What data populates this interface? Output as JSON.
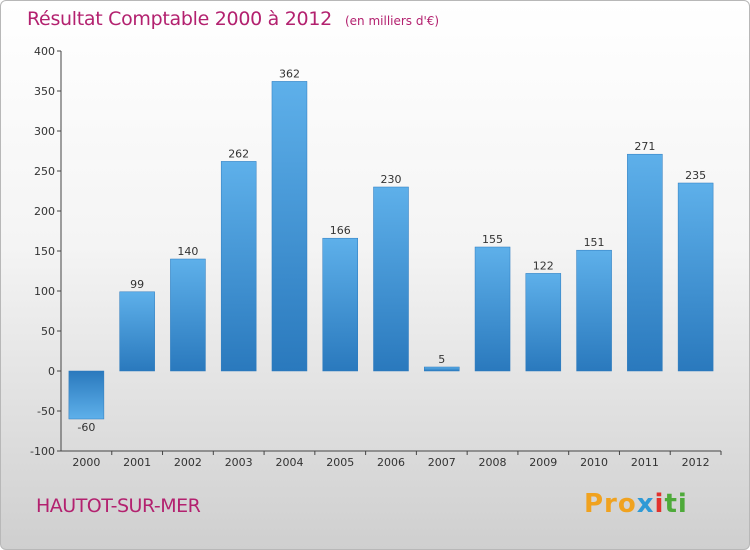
{
  "chart_data": {
    "type": "bar",
    "title": "Résultat Comptable 2000 à 2012",
    "subtitle": "(en milliers d'€)",
    "categories": [
      "2000",
      "2001",
      "2002",
      "2003",
      "2004",
      "2005",
      "2006",
      "2007",
      "2008",
      "2009",
      "2010",
      "2011",
      "2012"
    ],
    "values": [
      -60,
      99,
      140,
      262,
      362,
      166,
      230,
      5,
      155,
      122,
      151,
      271,
      235
    ],
    "ylim": [
      -100,
      400
    ],
    "yticks": [
      -100,
      -50,
      0,
      50,
      100,
      150,
      200,
      250,
      300,
      350,
      400
    ],
    "xlabel": "",
    "ylabel": "",
    "grid": false,
    "legend": "none",
    "bar_color": "#3d8fd6",
    "axis_color": "#444444"
  },
  "footer": {
    "city": "HAUTOT-SUR-MER",
    "logo_parts": [
      "Pro",
      "x",
      "i",
      "ti"
    ]
  },
  "colors": {
    "title": "#b3216f",
    "logo": [
      "#f0a21f",
      "#2f9ad6",
      "#e2312d",
      "#4eaa3a"
    ]
  }
}
